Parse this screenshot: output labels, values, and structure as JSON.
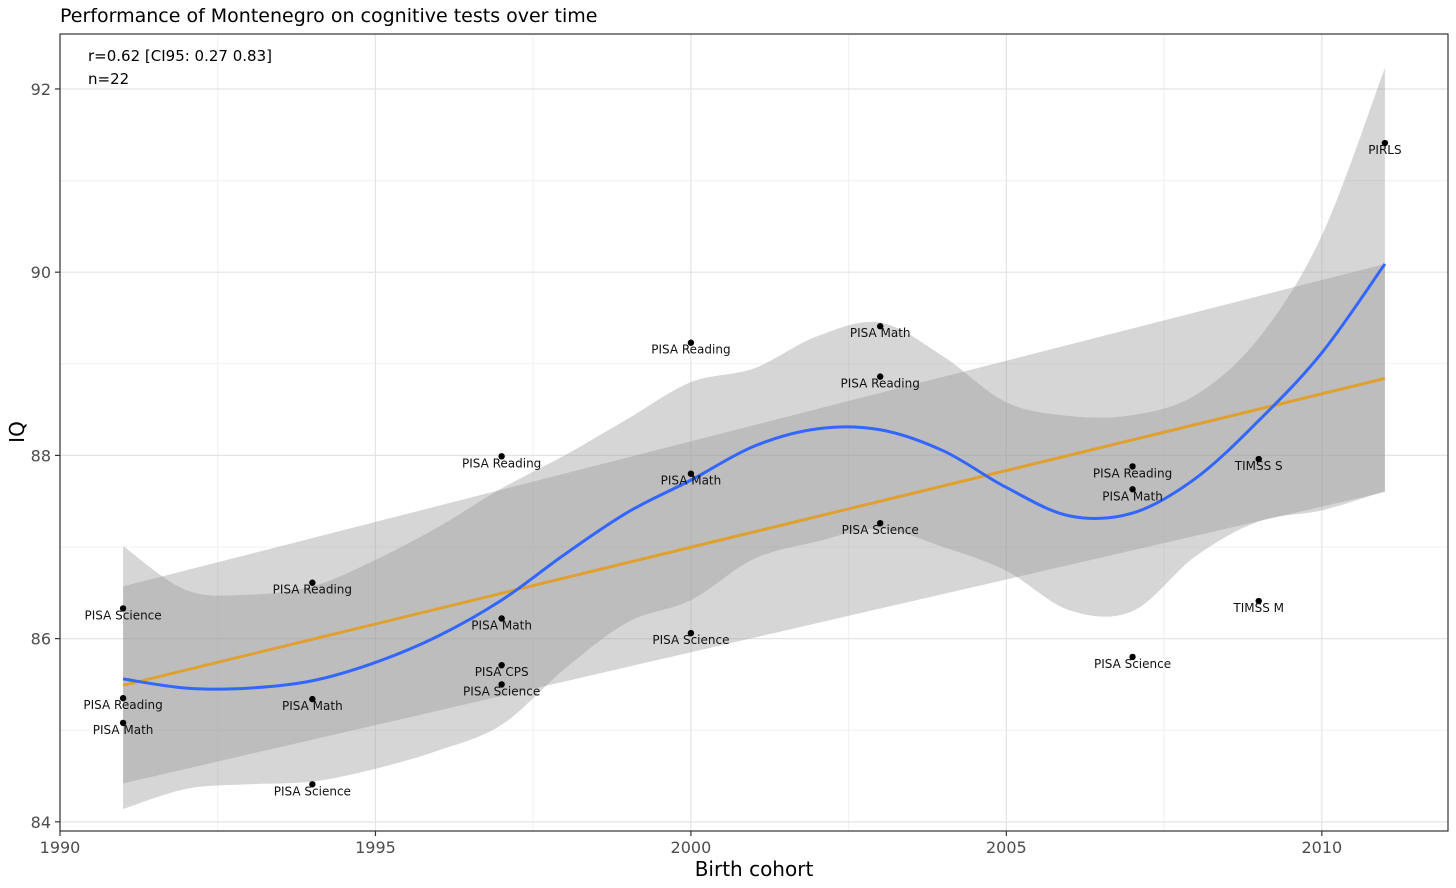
{
  "chart_data": {
    "type": "scatter",
    "title": "Performance of Montenegro on cognitive tests over time",
    "xlabel": "Birth cohort",
    "ylabel": "IQ",
    "xlim": [
      1990,
      2012
    ],
    "ylim": [
      83.9,
      92.6
    ],
    "x_ticks": [
      1990,
      1995,
      2000,
      2005,
      2010
    ],
    "y_ticks": [
      84,
      86,
      88,
      90,
      92
    ],
    "grid": true,
    "annotations": [
      "r=0.62 [CI95: 0.27 0.83]",
      "n=22"
    ],
    "points": [
      {
        "x": 1991,
        "y": 86.33,
        "label": "PISA Science"
      },
      {
        "x": 1991,
        "y": 85.35,
        "label": "PISA Reading"
      },
      {
        "x": 1991,
        "y": 85.08,
        "label": "PISA Math"
      },
      {
        "x": 1994,
        "y": 86.61,
        "label": "PISA Reading"
      },
      {
        "x": 1994,
        "y": 85.34,
        "label": "PISA Math"
      },
      {
        "x": 1994,
        "y": 84.41,
        "label": "PISA Science"
      },
      {
        "x": 1997,
        "y": 87.99,
        "label": "PISA Reading"
      },
      {
        "x": 1997,
        "y": 86.22,
        "label": "PISA Math"
      },
      {
        "x": 1997,
        "y": 85.71,
        "label": "PISA CPS"
      },
      {
        "x": 1997,
        "y": 85.5,
        "label": "PISA Science"
      },
      {
        "x": 2000,
        "y": 89.23,
        "label": "PISA Reading"
      },
      {
        "x": 2000,
        "y": 87.8,
        "label": "PISA Math"
      },
      {
        "x": 2000,
        "y": 86.06,
        "label": "PISA Science"
      },
      {
        "x": 2003,
        "y": 89.41,
        "label": "PISA Math"
      },
      {
        "x": 2003,
        "y": 88.86,
        "label": "PISA Reading"
      },
      {
        "x": 2003,
        "y": 87.26,
        "label": "PISA Science"
      },
      {
        "x": 2007,
        "y": 87.88,
        "label": "PISA Reading"
      },
      {
        "x": 2007,
        "y": 87.63,
        "label": "PISA Math"
      },
      {
        "x": 2007,
        "y": 85.8,
        "label": "PISA Science"
      },
      {
        "x": 2009,
        "y": 87.96,
        "label": "TIMSS S"
      },
      {
        "x": 2009,
        "y": 86.41,
        "label": "TIMSS M"
      },
      {
        "x": 2011,
        "y": 91.41,
        "label": "PIRLS"
      }
    ],
    "linear_fit": {
      "color": "#E0A030",
      "x": [
        1991,
        2011
      ],
      "y": [
        85.49,
        88.84
      ],
      "ci_lower": [
        84.42,
        87.6
      ],
      "ci_upper": [
        86.57,
        90.09
      ],
      "ci_x": [
        1991,
        2011
      ]
    },
    "smooth_fit": {
      "color": "#3366FF",
      "x": [
        1991,
        1992,
        1993,
        1994,
        1995,
        1996,
        1997,
        1998,
        1999,
        2000,
        2001,
        2002,
        2003,
        2004,
        2005,
        2006,
        2007,
        2008,
        2009,
        2010,
        2011
      ],
      "y": [
        85.56,
        85.46,
        85.46,
        85.54,
        85.74,
        86.03,
        86.42,
        86.92,
        87.38,
        87.73,
        88.1,
        88.29,
        88.28,
        88.05,
        87.65,
        87.34,
        87.37,
        87.75,
        88.38,
        89.12,
        90.09
      ],
      "ci_lower": [
        84.14,
        84.36,
        84.41,
        84.44,
        84.58,
        84.78,
        85.06,
        85.67,
        86.18,
        86.42,
        86.87,
        87.06,
        87.2,
        87.0,
        86.74,
        86.31,
        86.3,
        86.9,
        87.28,
        87.4,
        87.61
      ],
      "ci_upper": [
        87.01,
        86.53,
        86.48,
        86.57,
        86.86,
        87.22,
        87.64,
        88.0,
        88.4,
        88.8,
        88.95,
        89.3,
        89.45,
        89.08,
        88.58,
        88.43,
        88.44,
        88.66,
        89.28,
        90.4,
        92.23
      ]
    }
  }
}
